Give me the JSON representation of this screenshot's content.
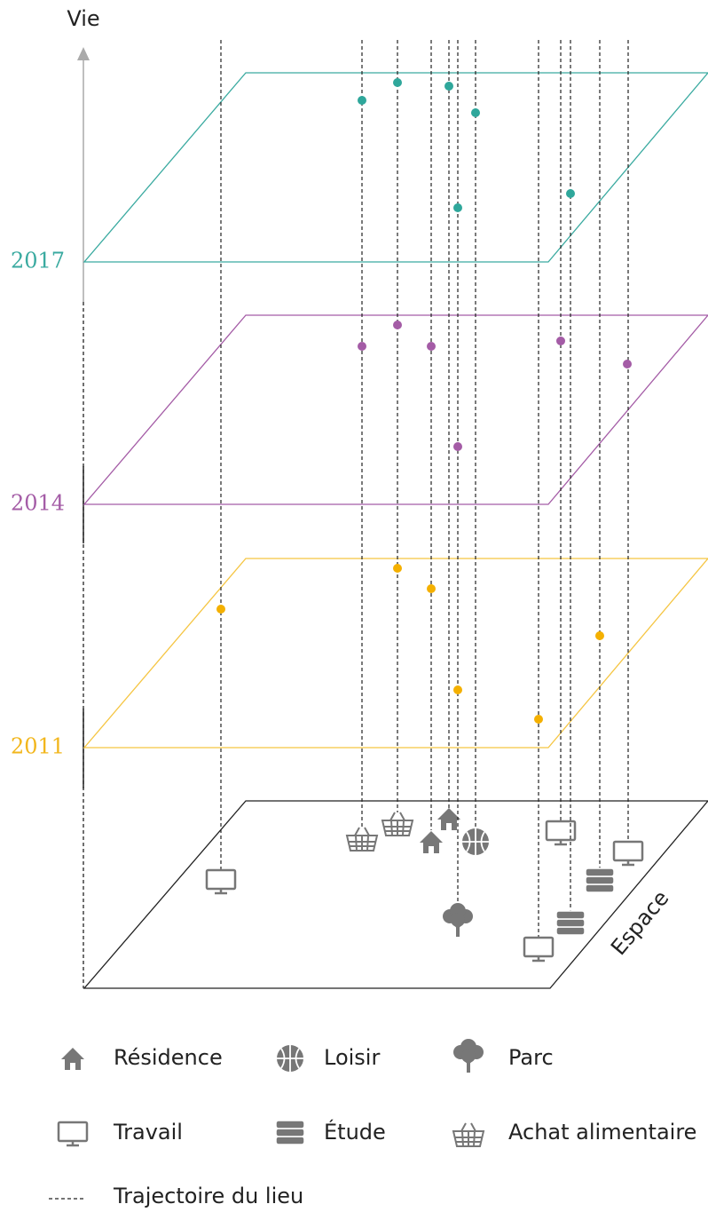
{
  "axis": {
    "vertical": "Vie",
    "ground": "Espace"
  },
  "layers": [
    {
      "year": "2017"
    },
    {
      "year": "2014"
    },
    {
      "year": "2011"
    }
  ],
  "legend": {
    "items": [
      {
        "label": "Résidence"
      },
      {
        "label": "Loisir"
      },
      {
        "label": "Parc"
      },
      {
        "label": "Travail"
      },
      {
        "label": "Étude"
      },
      {
        "label": "Achat alimentaire"
      }
    ],
    "trajectory": "Trajectoire du lieu"
  }
}
